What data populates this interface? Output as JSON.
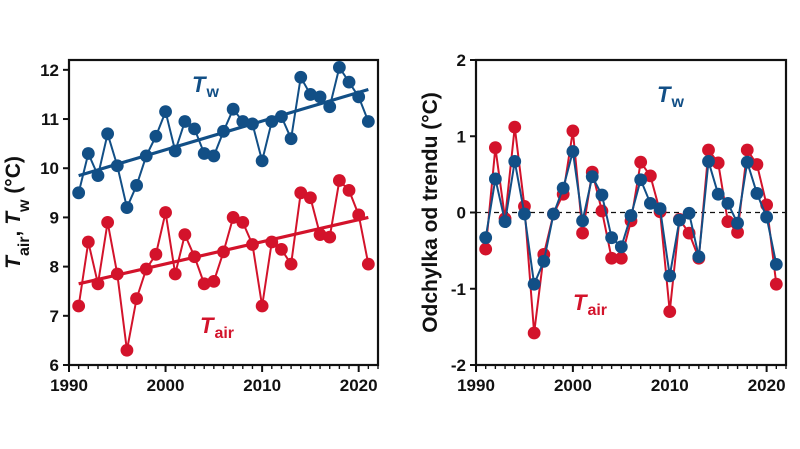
{
  "colors": {
    "water": "#124f86",
    "air": "#d3132b",
    "axis": "#111111"
  },
  "chart_data": [
    {
      "type": "scatter",
      "ylabel": {
        "parts": [
          "T",
          "air",
          ", ",
          "T",
          "w",
          " (°C)"
        ]
      },
      "xlim": [
        1990,
        2022
      ],
      "ylim": [
        6,
        12.2
      ],
      "xticks": [
        "1990",
        "2000",
        "2010",
        "2020"
      ],
      "yticks": [
        "6",
        "7",
        "8",
        "9",
        "10",
        "11",
        "12"
      ],
      "annotations": [
        {
          "main": "T",
          "sub": "w",
          "series": "water"
        },
        {
          "main": "T",
          "sub": "air",
          "series": "air"
        }
      ],
      "x": [
        1991,
        1992,
        1993,
        1994,
        1995,
        1996,
        1997,
        1998,
        1999,
        2000,
        2001,
        2002,
        2003,
        2004,
        2005,
        2006,
        2007,
        2008,
        2009,
        2010,
        2011,
        2012,
        2013,
        2014,
        2015,
        2016,
        2017,
        2018,
        2019,
        2020,
        2021
      ],
      "series": [
        {
          "key": "water",
          "values": [
            9.5,
            10.3,
            9.85,
            10.7,
            10.05,
            9.2,
            9.65,
            10.25,
            10.65,
            11.15,
            10.35,
            10.95,
            10.8,
            10.3,
            10.25,
            10.75,
            11.2,
            10.95,
            10.9,
            10.15,
            10.95,
            11.05,
            10.6,
            11.85,
            11.5,
            11.45,
            11.25,
            12.05,
            11.75,
            11.45,
            10.95
          ],
          "trend": [
            9.85,
            11.6
          ]
        },
        {
          "key": "air",
          "values": [
            7.2,
            8.5,
            7.65,
            8.9,
            7.85,
            6.3,
            7.35,
            7.95,
            8.25,
            9.1,
            7.85,
            8.65,
            8.2,
            7.65,
            7.7,
            8.3,
            9.0,
            8.9,
            8.45,
            7.2,
            8.5,
            8.35,
            8.05,
            9.5,
            9.4,
            8.65,
            8.6,
            9.75,
            9.55,
            9.05,
            8.05
          ],
          "trend": [
            7.65,
            9.0
          ]
        }
      ]
    },
    {
      "type": "scatter",
      "ylabel": {
        "parts": [
          "Odchylka od trendu (°C)"
        ]
      },
      "xlim": [
        1990,
        2022
      ],
      "ylim": [
        -2,
        2
      ],
      "xticks": [
        "1990",
        "2000",
        "2010",
        "2020"
      ],
      "yticks": [
        "-2",
        "-1",
        "0",
        "1",
        "2"
      ],
      "zero_line": true,
      "annotations": [
        {
          "main": "T",
          "sub": "w",
          "series": "water"
        },
        {
          "main": "T",
          "sub": "air",
          "series": "air"
        }
      ],
      "x": [
        1991,
        1992,
        1993,
        1994,
        1995,
        1996,
        1997,
        1998,
        1999,
        2000,
        2001,
        2002,
        2003,
        2004,
        2005,
        2006,
        2007,
        2008,
        2009,
        2010,
        2011,
        2012,
        2013,
        2014,
        2015,
        2016,
        2017,
        2018,
        2019,
        2020,
        2021
      ],
      "series": [
        {
          "key": "air",
          "values": [
            -0.48,
            0.85,
            -0.08,
            1.12,
            0.08,
            -1.58,
            -0.55,
            -0.02,
            0.24,
            1.07,
            -0.27,
            0.53,
            0.02,
            -0.6,
            -0.6,
            -0.11,
            0.66,
            0.48,
            0.01,
            -1.3,
            -0.09,
            -0.27,
            -0.6,
            0.82,
            0.65,
            -0.12,
            -0.26,
            0.82,
            0.63,
            0.1,
            -0.94
          ]
        },
        {
          "key": "water",
          "values": [
            -0.33,
            0.44,
            -0.12,
            0.67,
            -0.02,
            -0.94,
            -0.64,
            -0.02,
            0.32,
            0.8,
            -0.11,
            0.47,
            0.23,
            -0.33,
            -0.45,
            -0.04,
            0.43,
            0.12,
            0.05,
            -0.83,
            -0.1,
            -0.01,
            -0.58,
            0.67,
            0.24,
            0.12,
            -0.14,
            0.66,
            0.25,
            -0.06,
            -0.68
          ]
        }
      ]
    }
  ]
}
